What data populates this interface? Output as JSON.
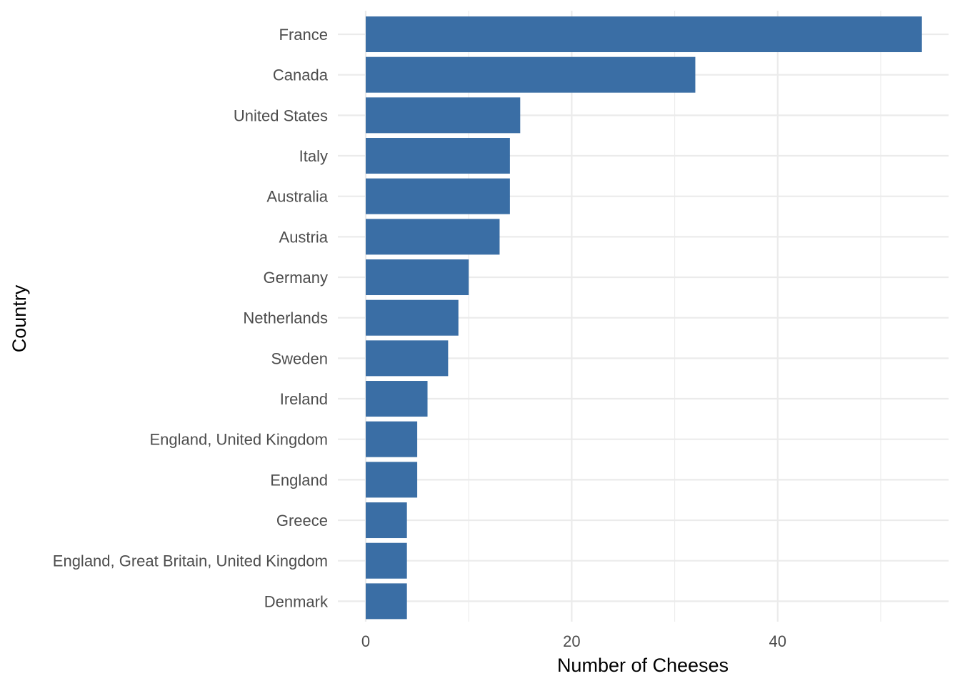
{
  "chart_data": {
    "type": "bar",
    "orientation": "horizontal",
    "categories": [
      "France",
      "Canada",
      "United States",
      "Italy",
      "Australia",
      "Austria",
      "Germany",
      "Netherlands",
      "Sweden",
      "Ireland",
      "England, United Kingdom",
      "England",
      "Greece",
      "England, Great Britain, United Kingdom",
      "Denmark"
    ],
    "values": [
      54,
      32,
      15,
      14,
      14,
      13,
      10,
      9,
      8,
      6,
      5,
      5,
      4,
      4,
      4
    ],
    "xlabel": "Number of Cheeses",
    "ylabel": "Country",
    "xlim": [
      0,
      56.7
    ],
    "x_ticks": [
      0,
      20,
      40
    ],
    "x_tick_labels": [
      "0",
      "20",
      "40"
    ],
    "x_minor_ticks": [
      10,
      30,
      50
    ],
    "grid": true,
    "legend": "none",
    "bar_color": "#3A6EA5",
    "grid_color": "#EBEBEB"
  }
}
